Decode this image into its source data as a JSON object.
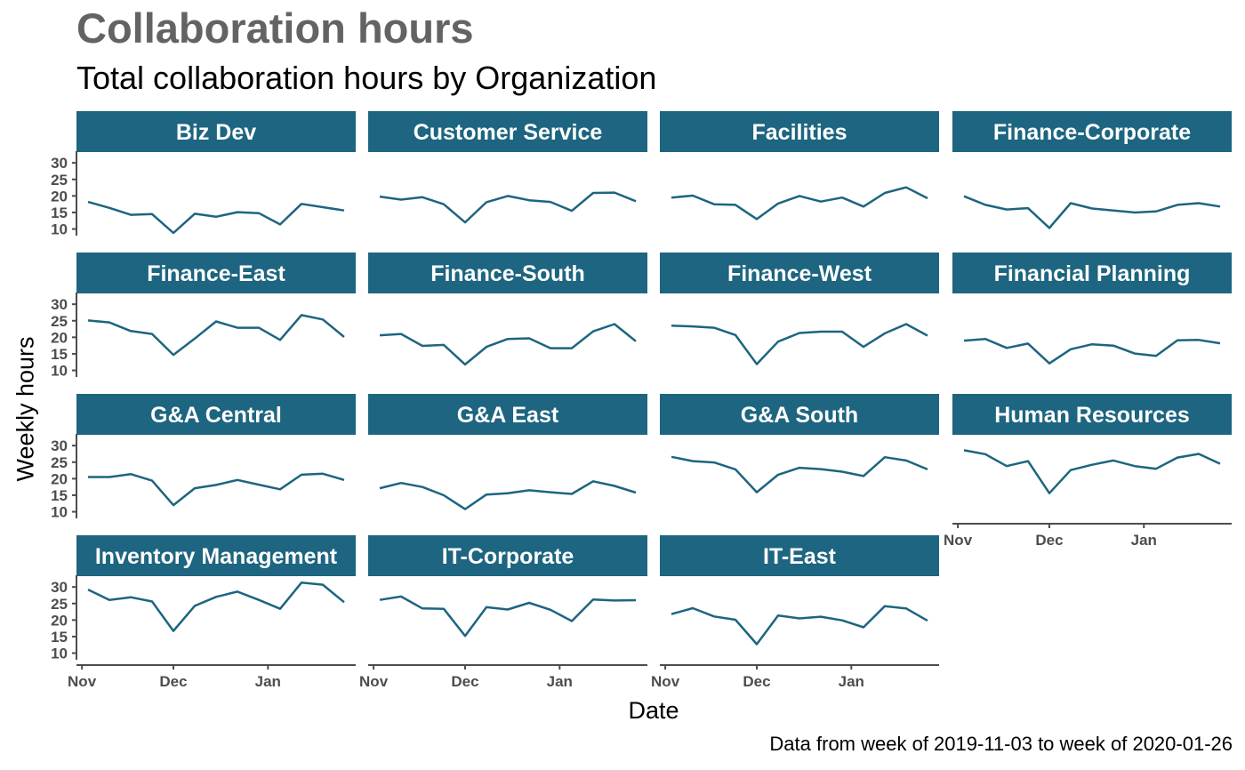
{
  "title": "Collaboration hours",
  "subtitle": "Total collaboration hours by Organization",
  "caption": "Data from week of 2019-11-03 to week of 2020-01-26",
  "colors": {
    "line": "#1d6580",
    "strip": "#1d6580",
    "strip_text": "#ffffff",
    "axis": "#4d4d4d",
    "title": "#636363"
  },
  "chart_data": {
    "type": "line",
    "facet": "small multiples, 4 columns",
    "xlabel": "Date",
    "ylabel": "Weekly hours",
    "x": [
      "2019-11-03",
      "2019-11-10",
      "2019-11-17",
      "2019-11-24",
      "2019-12-01",
      "2019-12-08",
      "2019-12-15",
      "2019-12-22",
      "2019-12-29",
      "2020-01-05",
      "2020-01-12",
      "2020-01-19",
      "2020-01-26"
    ],
    "xticks": [
      "Nov",
      "Dec",
      "Jan"
    ],
    "xtick_dates": [
      "2019-11-01",
      "2019-12-01",
      "2020-01-01"
    ],
    "yticks": [
      10,
      15,
      20,
      25,
      30
    ],
    "ylim": [
      8,
      33
    ],
    "grid": false,
    "series": [
      {
        "name": "Biz Dev",
        "values": [
          18.2,
          16.4,
          14.3,
          14.5,
          8.8,
          14.6,
          13.7,
          15.1,
          14.8,
          11.4,
          17.6,
          16.6,
          15.6
        ]
      },
      {
        "name": "Customer Service",
        "values": [
          19.8,
          18.9,
          19.6,
          17.5,
          12.0,
          18.1,
          20.0,
          18.7,
          18.2,
          15.5,
          20.9,
          21.0,
          18.4
        ]
      },
      {
        "name": "Facilities",
        "values": [
          19.5,
          20.1,
          17.5,
          17.3,
          13.0,
          17.7,
          20.0,
          18.3,
          19.5,
          16.8,
          20.9,
          22.6,
          19.3
        ]
      },
      {
        "name": "Finance-Corporate",
        "values": [
          19.9,
          17.3,
          15.9,
          16.3,
          10.3,
          17.8,
          16.2,
          15.6,
          15.0,
          15.3,
          17.3,
          17.8,
          16.8
        ]
      },
      {
        "name": "Finance-East",
        "values": [
          25.1,
          24.5,
          21.9,
          21.0,
          14.7,
          19.6,
          24.8,
          22.9,
          22.9,
          19.2,
          26.7,
          25.4,
          20.1
        ]
      },
      {
        "name": "Finance-South",
        "values": [
          20.6,
          21.0,
          17.4,
          17.7,
          11.8,
          17.1,
          19.5,
          19.7,
          16.7,
          16.7,
          21.8,
          24.0,
          18.8
        ]
      },
      {
        "name": "Finance-West",
        "values": [
          23.5,
          23.3,
          22.9,
          20.7,
          11.9,
          18.7,
          21.3,
          21.7,
          21.7,
          17.1,
          21.2,
          24.0,
          20.5
        ]
      },
      {
        "name": "Financial Planning",
        "values": [
          19.0,
          19.5,
          16.8,
          18.1,
          12.1,
          16.4,
          17.9,
          17.5,
          15.1,
          14.4,
          19.1,
          19.2,
          18.2
        ]
      },
      {
        "name": "G&A Central",
        "values": [
          20.5,
          20.5,
          21.4,
          19.4,
          12.0,
          17.1,
          18.1,
          19.6,
          18.2,
          16.8,
          21.2,
          21.5,
          19.6
        ]
      },
      {
        "name": "G&A East",
        "values": [
          17.1,
          18.7,
          17.5,
          15.0,
          10.8,
          15.2,
          15.6,
          16.5,
          15.9,
          15.4,
          19.2,
          17.8,
          15.8
        ]
      },
      {
        "name": "G&A South",
        "values": [
          26.6,
          25.3,
          24.9,
          22.8,
          15.9,
          21.2,
          23.3,
          22.9,
          22.1,
          20.8,
          26.5,
          25.5,
          22.8
        ]
      },
      {
        "name": "Human Resources",
        "values": [
          28.6,
          27.4,
          23.8,
          25.3,
          15.6,
          22.6,
          24.2,
          25.5,
          23.8,
          23.0,
          26.4,
          27.5,
          24.5
        ]
      },
      {
        "name": "Inventory Management",
        "values": [
          29.2,
          26.1,
          26.9,
          25.6,
          16.7,
          24.3,
          27.0,
          28.6,
          26.1,
          23.4,
          31.3,
          30.7,
          25.4
        ]
      },
      {
        "name": "IT-Corporate",
        "values": [
          26.1,
          27.1,
          23.5,
          23.4,
          15.2,
          23.9,
          23.2,
          25.2,
          23.1,
          19.7,
          26.2,
          25.9,
          26.0
        ]
      },
      {
        "name": "IT-East",
        "values": [
          21.8,
          23.6,
          21.1,
          20.1,
          12.7,
          21.4,
          20.5,
          21.0,
          19.9,
          17.8,
          24.2,
          23.5,
          19.8
        ]
      }
    ]
  }
}
